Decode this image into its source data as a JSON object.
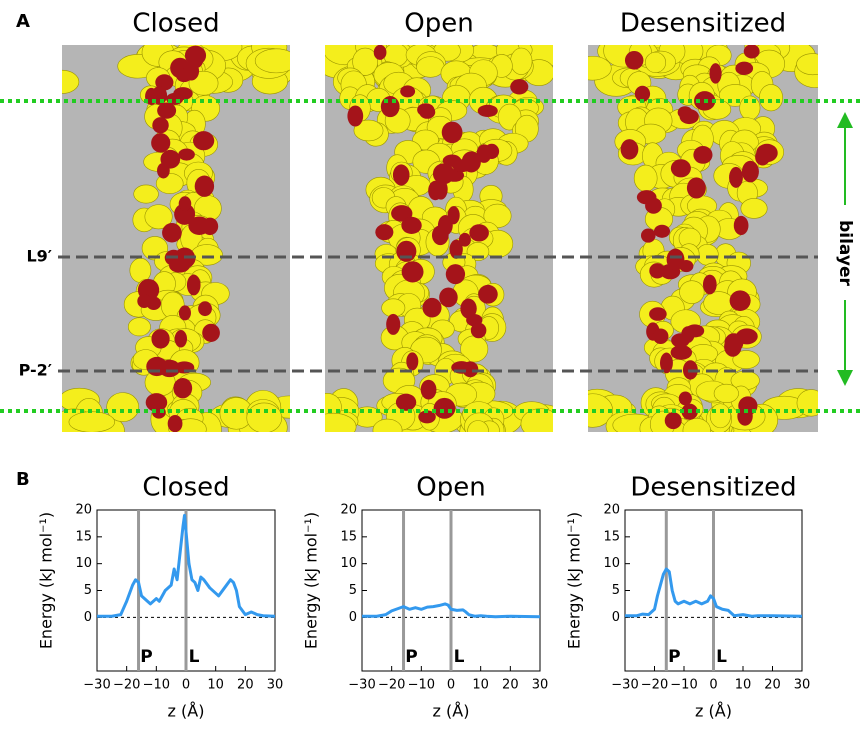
{
  "panel_a": {
    "label": "A",
    "titles": [
      "Closed",
      "Open",
      "Desensitized"
    ],
    "levels": [
      "L9′",
      "P-2′"
    ],
    "bilayer": "bilayer"
  },
  "panel_b": {
    "label": "B"
  },
  "chart_data": [
    {
      "type": "line",
      "title": "Closed",
      "xlabel": "z (Å)",
      "ylabel": "Energy (kJ mol⁻¹)",
      "xlim": [
        -30,
        30
      ],
      "ylim": [
        -10,
        20
      ],
      "xticks": [
        {
          "value": -30,
          "label": "−30"
        },
        {
          "value": -20,
          "label": "−20"
        },
        {
          "value": -10,
          "label": "−10"
        },
        0,
        10,
        20,
        30
      ],
      "yticks": [
        0,
        5,
        10,
        15,
        20
      ],
      "vlines": [
        {
          "value": -16,
          "label": "P"
        },
        {
          "value": 0,
          "label": "L"
        }
      ],
      "series": [
        {
          "color": "#3399ee",
          "x": [
            -30,
            -25,
            -22,
            -20,
            -18,
            -17,
            -16,
            -15,
            -13,
            -12,
            -10,
            -9,
            -7,
            -5,
            -4,
            -3,
            -2,
            -1,
            -0.5,
            0,
            1,
            2,
            3,
            4,
            5,
            6,
            8,
            10,
            11,
            13,
            15,
            16,
            17,
            18,
            20,
            22,
            24,
            26,
            30
          ],
          "values": [
            0.2,
            0.2,
            0.5,
            3,
            6,
            7,
            6.5,
            4,
            3,
            2.5,
            3.5,
            3,
            5,
            6,
            9,
            7,
            12,
            17,
            19,
            16,
            10,
            7,
            6.5,
            5,
            7.5,
            7,
            5.5,
            4.5,
            4,
            5.5,
            7,
            6.5,
            5,
            2,
            0.5,
            1,
            0.5,
            0.3,
            0.2
          ]
        }
      ]
    },
    {
      "type": "line",
      "title": "Open",
      "xlabel": "z (Å)",
      "ylabel": "Energy (kJ mol⁻¹)",
      "xlim": [
        -30,
        30
      ],
      "ylim": [
        -10,
        20
      ],
      "xticks": [
        {
          "value": -30,
          "label": "−30"
        },
        {
          "value": -20,
          "label": "−20"
        },
        {
          "value": -10,
          "label": "−10"
        },
        0,
        10,
        20,
        30
      ],
      "yticks": [
        0,
        5,
        10,
        15,
        20
      ],
      "vlines": [
        {
          "value": -16,
          "label": "P"
        },
        {
          "value": 0,
          "label": "L"
        }
      ],
      "series": [
        {
          "color": "#3399ee",
          "x": [
            -30,
            -25,
            -22,
            -20,
            -18,
            -16,
            -14,
            -12,
            -10,
            -8,
            -6,
            -4,
            -2,
            -1,
            0,
            2,
            4,
            5,
            6,
            8,
            10,
            12,
            15,
            20,
            30
          ],
          "values": [
            0.2,
            0.2,
            0.5,
            1.2,
            1.6,
            2,
            1.5,
            1.8,
            1.5,
            1.9,
            2,
            2.2,
            2.5,
            2.3,
            1.5,
            1.3,
            1.4,
            1,
            0.5,
            0.2,
            0.3,
            0.2,
            0.1,
            0.2,
            0.1
          ]
        }
      ]
    },
    {
      "type": "line",
      "title": "Desensitized",
      "xlabel": "z (Å)",
      "ylabel": "Energy (kJ mol⁻¹)",
      "xlim": [
        -30,
        30
      ],
      "ylim": [
        -10,
        20
      ],
      "xticks": [
        {
          "value": -30,
          "label": "−30"
        },
        {
          "value": -20,
          "label": "−20"
        },
        {
          "value": -10,
          "label": "−10"
        },
        0,
        10,
        20,
        30
      ],
      "yticks": [
        0,
        5,
        10,
        15,
        20
      ],
      "vlines": [
        {
          "value": -16,
          "label": "P"
        },
        {
          "value": 0,
          "label": "L"
        }
      ],
      "series": [
        {
          "color": "#3399ee",
          "x": [
            -30,
            -26,
            -24,
            -22,
            -20,
            -19,
            -18,
            -17,
            -16,
            -15,
            -14,
            -13,
            -12,
            -10,
            -8,
            -6,
            -4,
            -2,
            -1,
            0,
            1,
            3,
            5,
            7,
            10,
            13,
            15,
            20,
            30
          ],
          "values": [
            0.3,
            0.3,
            0.6,
            0.5,
            1.5,
            4,
            6,
            8,
            9,
            8.5,
            5,
            3,
            2.5,
            3,
            2.5,
            3,
            2.5,
            3,
            4,
            3.5,
            2,
            1.5,
            1.3,
            0.3,
            0.5,
            0.2,
            0.3,
            0.3,
            0.2
          ]
        }
      ]
    }
  ]
}
